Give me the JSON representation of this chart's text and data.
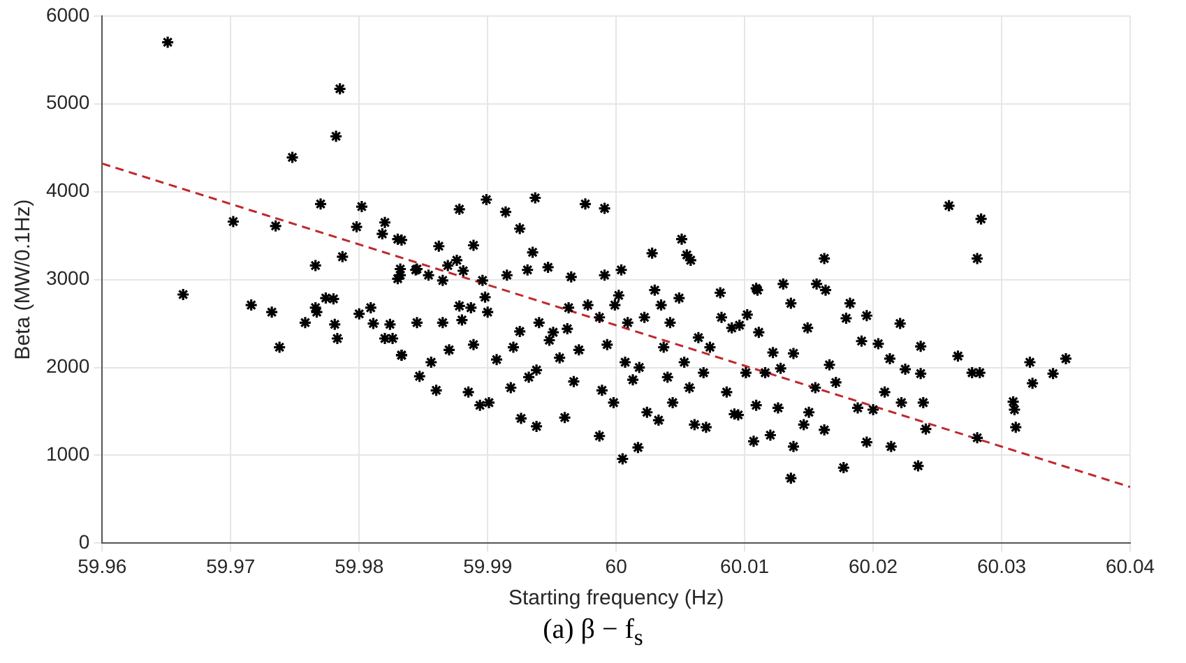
{
  "chart_data": {
    "type": "scatter",
    "xlabel": "Starting frequency (Hz)",
    "ylabel": "Beta (MW/0.1Hz)",
    "annotations": [
      "(a) β − f$_{s}$"
    ],
    "xlim": [
      59.96,
      60.04
    ],
    "xticks": [
      59.96,
      59.97,
      59.98,
      59.99,
      60,
      60.01,
      60.02,
      60.03,
      60.04
    ],
    "ylim": [
      0,
      6000
    ],
    "yticks": [
      0,
      1000,
      2000,
      3000,
      4000,
      5000,
      6000
    ],
    "grid": true,
    "legend": false,
    "marker": "cross",
    "series": [
      {
        "type": "scatter",
        "color": "#000000",
        "x": [
          59.9651,
          59.9663,
          59.9702,
          59.9716,
          59.9732,
          59.9735,
          59.9738,
          59.9748,
          59.9758,
          59.9766,
          59.9766,
          59.9767,
          59.977,
          59.9774,
          59.978,
          59.9781,
          59.9782,
          59.9783,
          59.9785,
          59.9787,
          59.9798,
          59.98,
          59.9802,
          59.9809,
          59.9811,
          59.9818,
          59.982,
          59.982,
          59.9824,
          59.9826,
          59.983,
          59.9832,
          59.9833,
          59.9833,
          59.9844,
          59.9845,
          59.9847,
          59.983,
          59.9832,
          59.9833,
          59.9845,
          59.9854,
          59.9856,
          59.986,
          59.9862,
          59.9865,
          59.9865,
          59.9869,
          59.987,
          59.9876,
          59.9878,
          59.9878,
          59.988,
          59.9881,
          59.9885,
          59.9887,
          59.9889,
          59.9889,
          59.9894,
          59.9896,
          59.9898,
          59.9899,
          59.99,
          59.9901,
          59.9907,
          59.9914,
          59.9915,
          59.9918,
          59.992,
          59.9925,
          59.9925,
          59.9926,
          59.9931,
          59.9932,
          59.9935,
          59.9937,
          59.9938,
          59.9938,
          59.994,
          59.9947,
          59.9948,
          59.9951,
          59.9956,
          59.996,
          59.9962,
          59.9963,
          59.9965,
          59.9967,
          59.9971,
          59.9976,
          59.9978,
          59.9987,
          59.9987,
          59.9989,
          59.9991,
          59.9991,
          59.9993,
          59.9998,
          59.9999,
          60.0002,
          60.0004,
          60.0005,
          60.0007,
          60.0009,
          60.0013,
          60.0017,
          60.0018,
          60.0022,
          60.0024,
          60.0028,
          60.003,
          60.0033,
          60.0035,
          60.0037,
          60.004,
          60.0042,
          60.0044,
          60.0049,
          60.0051,
          60.0053,
          60.0055,
          60.0057,
          60.0058,
          60.0061,
          60.0064,
          60.0068,
          60.007,
          60.0073,
          60.0081,
          60.0082,
          60.0086,
          60.009,
          60.0092,
          60.0101,
          60.0107,
          60.0109,
          60.0096,
          60.0095,
          60.011,
          60.0102,
          60.0111,
          60.0109,
          60.0116,
          60.012,
          60.0122,
          60.0126,
          60.0128,
          60.013,
          60.0136,
          60.0136,
          60.0138,
          60.0138,
          60.0146,
          60.0149,
          60.015,
          60.0155,
          60.0156,
          60.0162,
          60.0163,
          60.0162,
          60.0166,
          60.0171,
          60.0177,
          60.0179,
          60.0182,
          60.0188,
          60.0191,
          60.0195,
          60.0195,
          60.02,
          60.0204,
          60.0209,
          60.0213,
          60.0214,
          60.0221,
          60.0222,
          60.0225,
          60.0235,
          60.0237,
          60.0237,
          60.0239,
          60.0241,
          60.0259,
          60.0266,
          60.0277,
          60.0281,
          60.0281,
          60.0283,
          60.0284,
          60.0309,
          60.031,
          60.0311,
          60.0322,
          60.0324,
          60.034,
          60.035
        ],
        "values": [
          5700,
          2830,
          3660,
          2710,
          2630,
          3610,
          2230,
          4390,
          2510,
          3160,
          2680,
          2630,
          3860,
          2790,
          2780,
          2490,
          4630,
          2330,
          5170,
          3260,
          3600,
          2610,
          3830,
          2680,
          2500,
          3520,
          3650,
          2330,
          2490,
          2330,
          3010,
          3120,
          2140,
          3450,
          3110,
          2510,
          1900,
          3460,
          3050,
          2140,
          3120,
          3050,
          2060,
          1740,
          3380,
          2510,
          2990,
          3160,
          2200,
          3220,
          3800,
          2700,
          2540,
          3100,
          1720,
          2680,
          3390,
          2260,
          1570,
          2990,
          2800,
          3910,
          2630,
          1600,
          2090,
          3770,
          3050,
          1770,
          2230,
          2410,
          3580,
          1420,
          3110,
          1890,
          3310,
          3930,
          1330,
          1970,
          2510,
          3140,
          2310,
          2400,
          2110,
          1430,
          2440,
          2680,
          3030,
          1840,
          2200,
          3860,
          2710,
          2570,
          1220,
          1740,
          3810,
          3050,
          2260,
          1600,
          2710,
          2820,
          3110,
          960,
          2060,
          2510,
          1860,
          1090,
          2000,
          2570,
          1490,
          3300,
          2880,
          1400,
          2710,
          2230,
          1890,
          2510,
          1600,
          2790,
          3460,
          2060,
          3280,
          1770,
          3220,
          1350,
          2340,
          1940,
          1320,
          2230,
          2850,
          2570,
          1720,
          2450,
          1470,
          1940,
          1160,
          2900,
          2480,
          1460,
          2880,
          2600,
          2400,
          1570,
          1940,
          1230,
          2170,
          1540,
          1990,
          2950,
          2730,
          740,
          1100,
          2160,
          1350,
          2450,
          1490,
          1770,
          2950,
          3240,
          2880,
          1290,
          2030,
          1830,
          860,
          2560,
          2730,
          1540,
          2300,
          2590,
          1150,
          1520,
          2270,
          1720,
          2100,
          1100,
          2500,
          1600,
          1980,
          880,
          2240,
          1930,
          1600,
          1300,
          3840,
          2130,
          1940,
          3240,
          1200,
          1940,
          3690,
          1610,
          1520,
          1320,
          2060,
          1820,
          1930,
          2100
        ]
      },
      {
        "type": "line",
        "color": "#c0282d",
        "line_style": "dashed",
        "marker": "none",
        "x": [
          59.96,
          60.04
        ],
        "values": [
          4320,
          640
        ]
      }
    ]
  }
}
